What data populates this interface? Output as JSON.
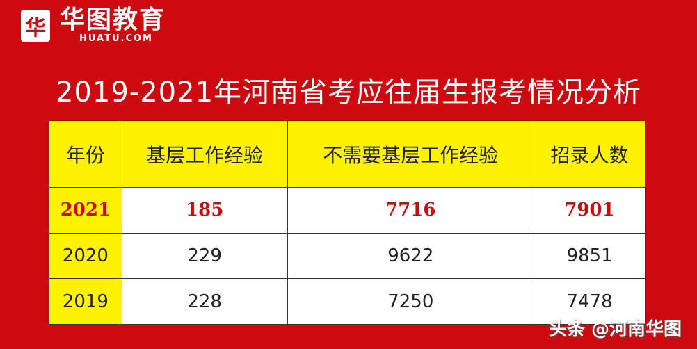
{
  "logo": {
    "mark": "华",
    "name": "华图教育",
    "domain": "HUATU.COM"
  },
  "title": "2019-2021年河南省考应往届生报考情况分析",
  "table": {
    "headers": [
      "年份",
      "基层工作经验",
      "不需要基层工作经验",
      "招录人数"
    ],
    "rows": [
      [
        "2021",
        "185",
        "7716",
        "7901"
      ],
      [
        "2020",
        "229",
        "9622",
        "9851"
      ],
      [
        "2019",
        "228",
        "7250",
        "7478"
      ]
    ],
    "highlight_color": "#cc0a0f",
    "header_color": "#fff200"
  },
  "watermark": "头条 @河南华图"
}
